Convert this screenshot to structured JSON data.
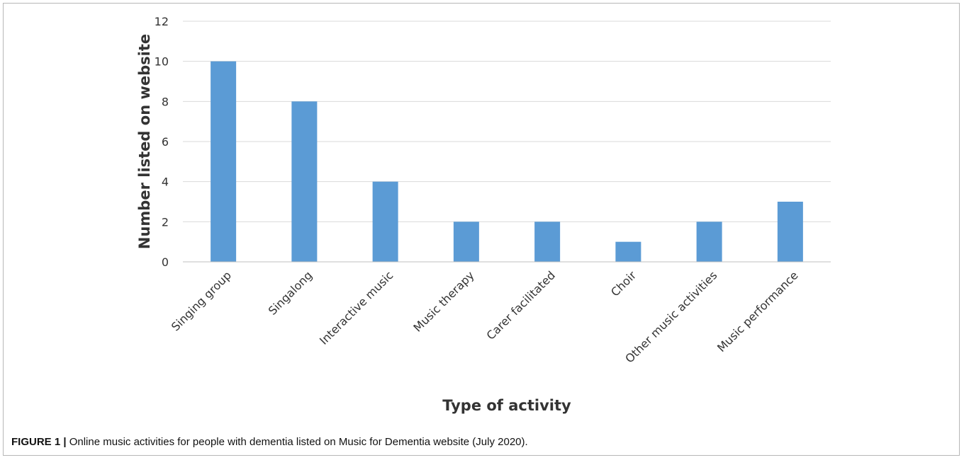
{
  "chart_data": {
    "type": "bar",
    "categories": [
      "Singing group",
      "Singalong",
      "Interactive music",
      "Music therapy",
      "Carer facilitated",
      "Choir",
      "Other music activities",
      "Music performance"
    ],
    "values": [
      10,
      8,
      4,
      2,
      2,
      1,
      2,
      3
    ],
    "xlabel": "Type of activity",
    "ylabel": "Number listed on website",
    "ylim": [
      0,
      12
    ],
    "yticks": [
      0,
      2,
      4,
      6,
      8,
      10,
      12
    ],
    "grid": true,
    "bar_color": "#5b9bd5",
    "grid_color": "#d9d9d9"
  },
  "caption": {
    "label": "FIGURE 1 |",
    "text": " Online music activities for people with dementia listed on Music for Dementia website (July 2020)."
  }
}
